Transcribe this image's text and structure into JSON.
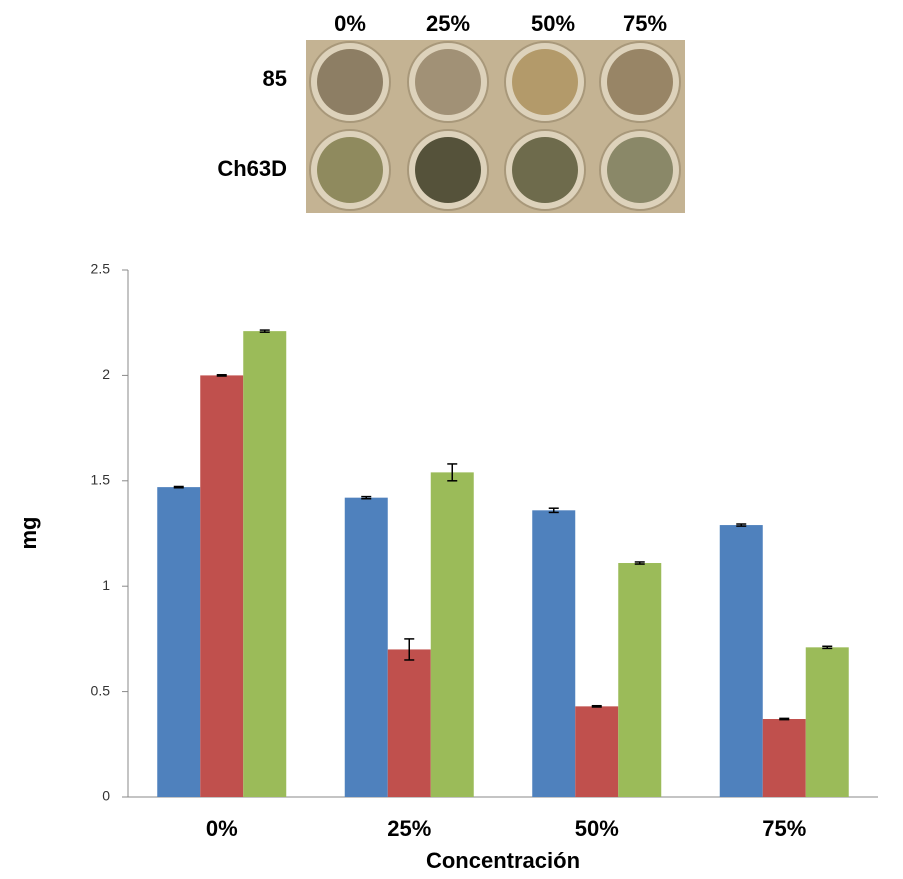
{
  "photo": {
    "columns": [
      "0%",
      "25%",
      "50%",
      "75%"
    ],
    "rows": [
      "85",
      "Ch63D"
    ]
  },
  "chart_data": {
    "type": "bar",
    "y_label": "mg",
    "x_label": "Concentración",
    "categories": [
      "0%",
      "25%",
      "50%",
      "75%"
    ],
    "series": [
      {
        "color": "#4f81bd",
        "values": [
          1.47,
          1.42,
          1.36,
          1.29
        ],
        "errors": [
          0.003,
          0.005,
          0.01,
          0.005
        ]
      },
      {
        "color": "#c0504d",
        "values": [
          2.0,
          0.7,
          0.43,
          0.37
        ],
        "errors": [
          0.003,
          0.05,
          0.003,
          0.003
        ]
      },
      {
        "color": "#9bbb59",
        "values": [
          2.21,
          1.54,
          1.11,
          0.71
        ],
        "errors": [
          0.005,
          0.04,
          0.005,
          0.005
        ]
      }
    ],
    "ylim": [
      0,
      2.5
    ],
    "yticks": [
      0,
      0.5,
      1,
      1.5,
      2,
      2.5
    ]
  }
}
